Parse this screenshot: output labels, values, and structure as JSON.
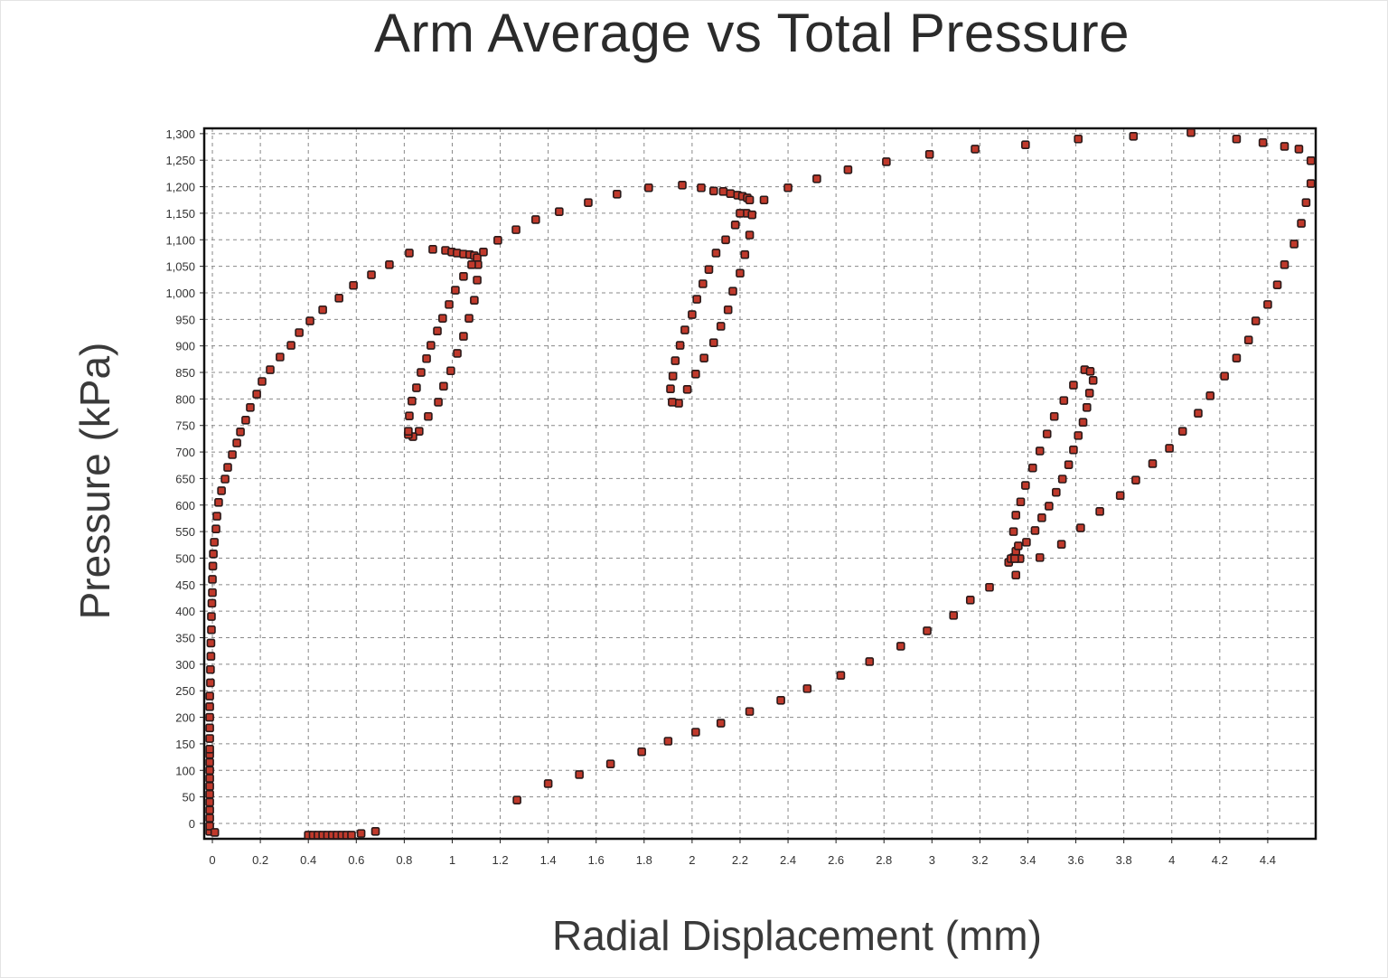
{
  "chart_data": {
    "type": "scatter",
    "title": "Arm Average vs Total Pressure",
    "xlabel": "Radial Displacement (mm)",
    "ylabel": "Pressure (kPa)",
    "xlim": [
      -0.034,
      4.6
    ],
    "ylim": [
      -29,
      1310
    ],
    "grid": true,
    "legend": "none",
    "marker_color": "#c0392b",
    "marker_edge_color": "#2a1a1a",
    "x_ticks": [
      "0",
      "0.2",
      "0.4",
      "0.6",
      "0.8",
      "1",
      "1.2",
      "1.4",
      "1.6",
      "1.8",
      "2",
      "2.2",
      "2.4",
      "2.6",
      "2.8",
      "3",
      "3.2",
      "3.4",
      "3.6",
      "3.8",
      "4",
      "4.2",
      "4.4"
    ],
    "y_ticks": [
      "0",
      "50",
      "100",
      "150",
      "200",
      "250",
      "300",
      "350",
      "400",
      "450",
      "500",
      "550",
      "600",
      "650",
      "700",
      "750",
      "800",
      "850",
      "900",
      "950",
      "1,000",
      "1,050",
      "1,100",
      "1,150",
      "1,200",
      "1,250",
      "1,300"
    ],
    "points": [
      [
        -0.011,
        -15
      ],
      [
        -0.011,
        -5
      ],
      [
        -0.011,
        10
      ],
      [
        -0.011,
        25
      ],
      [
        -0.011,
        40
      ],
      [
        -0.011,
        55
      ],
      [
        -0.011,
        70
      ],
      [
        -0.011,
        85
      ],
      [
        -0.011,
        100
      ],
      [
        -0.011,
        115
      ],
      [
        -0.011,
        130
      ],
      [
        -0.011,
        140
      ],
      [
        -0.011,
        160
      ],
      [
        -0.011,
        180
      ],
      [
        -0.011,
        200
      ],
      [
        -0.011,
        220
      ],
      [
        -0.011,
        240
      ],
      [
        -0.008,
        265
      ],
      [
        -0.008,
        290
      ],
      [
        -0.006,
        315
      ],
      [
        -0.006,
        340
      ],
      [
        -0.004,
        365
      ],
      [
        -0.004,
        390
      ],
      [
        -0.002,
        415
      ],
      [
        0,
        435
      ],
      [
        0,
        460
      ],
      [
        0.002,
        485
      ],
      [
        0.004,
        508
      ],
      [
        0.01,
        -17
      ],
      [
        0.008,
        530
      ],
      [
        0.015,
        555
      ],
      [
        0.019,
        579
      ],
      [
        0.026,
        605
      ],
      [
        0.038,
        627
      ],
      [
        0.053,
        649
      ],
      [
        0.064,
        671
      ],
      [
        0.083,
        695
      ],
      [
        0.102,
        717
      ],
      [
        0.117,
        738
      ],
      [
        0.139,
        760
      ],
      [
        0.158,
        784
      ],
      [
        0.185,
        809
      ],
      [
        0.207,
        833
      ],
      [
        0.241,
        855
      ],
      [
        0.282,
        879
      ],
      [
        0.328,
        901
      ],
      [
        0.362,
        925
      ],
      [
        0.407,
        947
      ],
      [
        0.46,
        968
      ],
      [
        0.528,
        990
      ],
      [
        0.588,
        1014
      ],
      [
        0.663,
        1034
      ],
      [
        0.738,
        1053
      ],
      [
        0.821,
        1075
      ],
      [
        0.919,
        1082
      ],
      [
        0.972,
        1080
      ],
      [
        0.998,
        1077
      ],
      [
        1.02,
        1075
      ],
      [
        1.047,
        1073
      ],
      [
        1.073,
        1072
      ],
      [
        1.092,
        1070
      ],
      [
        1.104,
        1066
      ],
      [
        1.107,
        1053
      ],
      [
        1.081,
        1053
      ],
      [
        1.104,
        1024
      ],
      [
        1.092,
        986
      ],
      [
        1.07,
        952
      ],
      [
        1.047,
        918
      ],
      [
        1.021,
        886
      ],
      [
        0.994,
        853
      ],
      [
        0.964,
        824
      ],
      [
        0.942,
        794
      ],
      [
        0.9,
        767
      ],
      [
        0.862,
        739
      ],
      [
        0.836,
        729
      ],
      [
        0.817,
        733
      ],
      [
        0.817,
        739
      ],
      [
        0.821,
        768
      ],
      [
        0.832,
        796
      ],
      [
        0.851,
        821
      ],
      [
        0.87,
        850
      ],
      [
        0.893,
        876
      ],
      [
        0.911,
        901
      ],
      [
        0.938,
        928
      ],
      [
        0.96,
        952
      ],
      [
        0.987,
        978
      ],
      [
        1.013,
        1005
      ],
      [
        1.047,
        1031
      ],
      [
        1.13,
        1077
      ],
      [
        1.19,
        1099
      ],
      [
        1.266,
        1119
      ],
      [
        1.348,
        1138
      ],
      [
        1.446,
        1153
      ],
      [
        1.567,
        1170
      ],
      [
        1.687,
        1186
      ],
      [
        1.819,
        1198
      ],
      [
        1.959,
        1203
      ],
      [
        2.038,
        1198
      ],
      [
        2.09,
        1192
      ],
      [
        2.13,
        1191
      ],
      [
        2.16,
        1187
      ],
      [
        2.19,
        1184
      ],
      [
        2.21,
        1182
      ],
      [
        2.23,
        1179
      ],
      [
        2.24,
        1175
      ],
      [
        2.3,
        1175
      ],
      [
        2.226,
        1150
      ],
      [
        2.25,
        1147
      ],
      [
        2.24,
        1109
      ],
      [
        2.22,
        1072
      ],
      [
        2.2,
        1037
      ],
      [
        2.17,
        1003
      ],
      [
        2.15,
        968
      ],
      [
        2.12,
        937
      ],
      [
        2.09,
        906
      ],
      [
        2.05,
        877
      ],
      [
        2.015,
        847
      ],
      [
        1.98,
        818
      ],
      [
        1.944,
        792
      ],
      [
        1.917,
        794
      ],
      [
        1.91,
        819
      ],
      [
        1.92,
        843
      ],
      [
        1.93,
        872
      ],
      [
        1.95,
        901
      ],
      [
        1.97,
        930
      ],
      [
        2.0,
        959
      ],
      [
        2.02,
        988
      ],
      [
        2.045,
        1017
      ],
      [
        2.07,
        1044
      ],
      [
        2.1,
        1075
      ],
      [
        2.14,
        1100
      ],
      [
        2.18,
        1128
      ],
      [
        2.2,
        1150
      ],
      [
        2.4,
        1198
      ],
      [
        2.52,
        1215
      ],
      [
        2.65,
        1232
      ],
      [
        2.81,
        1247
      ],
      [
        2.99,
        1261
      ],
      [
        3.18,
        1271
      ],
      [
        3.39,
        1279
      ],
      [
        3.61,
        1290
      ],
      [
        3.84,
        1295
      ],
      [
        4.08,
        1302
      ],
      [
        4.27,
        1290
      ],
      [
        4.38,
        1283
      ],
      [
        4.47,
        1276
      ],
      [
        4.53,
        1271
      ],
      [
        4.58,
        1249
      ],
      [
        4.58,
        1206
      ],
      [
        4.56,
        1170
      ],
      [
        4.54,
        1131
      ],
      [
        4.51,
        1092
      ],
      [
        4.47,
        1053
      ],
      [
        4.44,
        1015
      ],
      [
        4.4,
        978
      ],
      [
        4.35,
        947
      ],
      [
        4.32,
        911
      ],
      [
        4.27,
        877
      ],
      [
        4.22,
        843
      ],
      [
        4.16,
        806
      ],
      [
        4.11,
        773
      ],
      [
        4.045,
        739
      ],
      [
        3.99,
        707
      ],
      [
        3.92,
        678
      ],
      [
        3.85,
        647
      ],
      [
        3.785,
        618
      ],
      [
        3.7,
        588
      ],
      [
        3.62,
        557
      ],
      [
        3.54,
        526
      ],
      [
        3.45,
        501
      ],
      [
        3.35,
        468
      ],
      [
        3.24,
        445
      ],
      [
        3.16,
        421
      ],
      [
        3.09,
        392
      ],
      [
        2.98,
        363
      ],
      [
        2.87,
        334
      ],
      [
        2.74,
        305
      ],
      [
        2.62,
        279
      ],
      [
        2.48,
        254
      ],
      [
        2.37,
        232
      ],
      [
        2.24,
        211
      ],
      [
        2.12,
        189
      ],
      [
        2.015,
        172
      ],
      [
        1.9,
        155
      ],
      [
        1.79,
        135
      ],
      [
        1.66,
        112
      ],
      [
        1.53,
        92
      ],
      [
        1.4,
        75
      ],
      [
        1.27,
        44
      ],
      [
        3.32,
        492
      ],
      [
        3.34,
        501
      ],
      [
        3.35,
        513
      ],
      [
        3.36,
        523
      ],
      [
        3.34,
        550
      ],
      [
        3.35,
        581
      ],
      [
        3.37,
        606
      ],
      [
        3.39,
        637
      ],
      [
        3.42,
        670
      ],
      [
        3.45,
        702
      ],
      [
        3.48,
        734
      ],
      [
        3.51,
        767
      ],
      [
        3.55,
        797
      ],
      [
        3.59,
        826
      ],
      [
        3.637,
        855
      ],
      [
        3.66,
        852
      ],
      [
        3.672,
        835
      ],
      [
        3.657,
        811
      ],
      [
        3.646,
        784
      ],
      [
        3.63,
        756
      ],
      [
        3.61,
        731
      ],
      [
        3.59,
        704
      ],
      [
        3.57,
        676
      ],
      [
        3.544,
        649
      ],
      [
        3.518,
        624
      ],
      [
        3.488,
        598
      ],
      [
        3.458,
        576
      ],
      [
        3.43,
        552
      ],
      [
        3.394,
        530
      ],
      [
        3.367,
        499
      ],
      [
        3.33,
        499
      ],
      [
        3.345,
        499
      ],
      [
        0.4,
        -22
      ],
      [
        0.42,
        -22
      ],
      [
        0.44,
        -22
      ],
      [
        0.46,
        -22
      ],
      [
        0.48,
        -22
      ],
      [
        0.5,
        -22
      ],
      [
        0.52,
        -22
      ],
      [
        0.54,
        -22
      ],
      [
        0.56,
        -22
      ],
      [
        0.58,
        -22
      ],
      [
        0.62,
        -19
      ],
      [
        0.68,
        -15
      ]
    ]
  }
}
